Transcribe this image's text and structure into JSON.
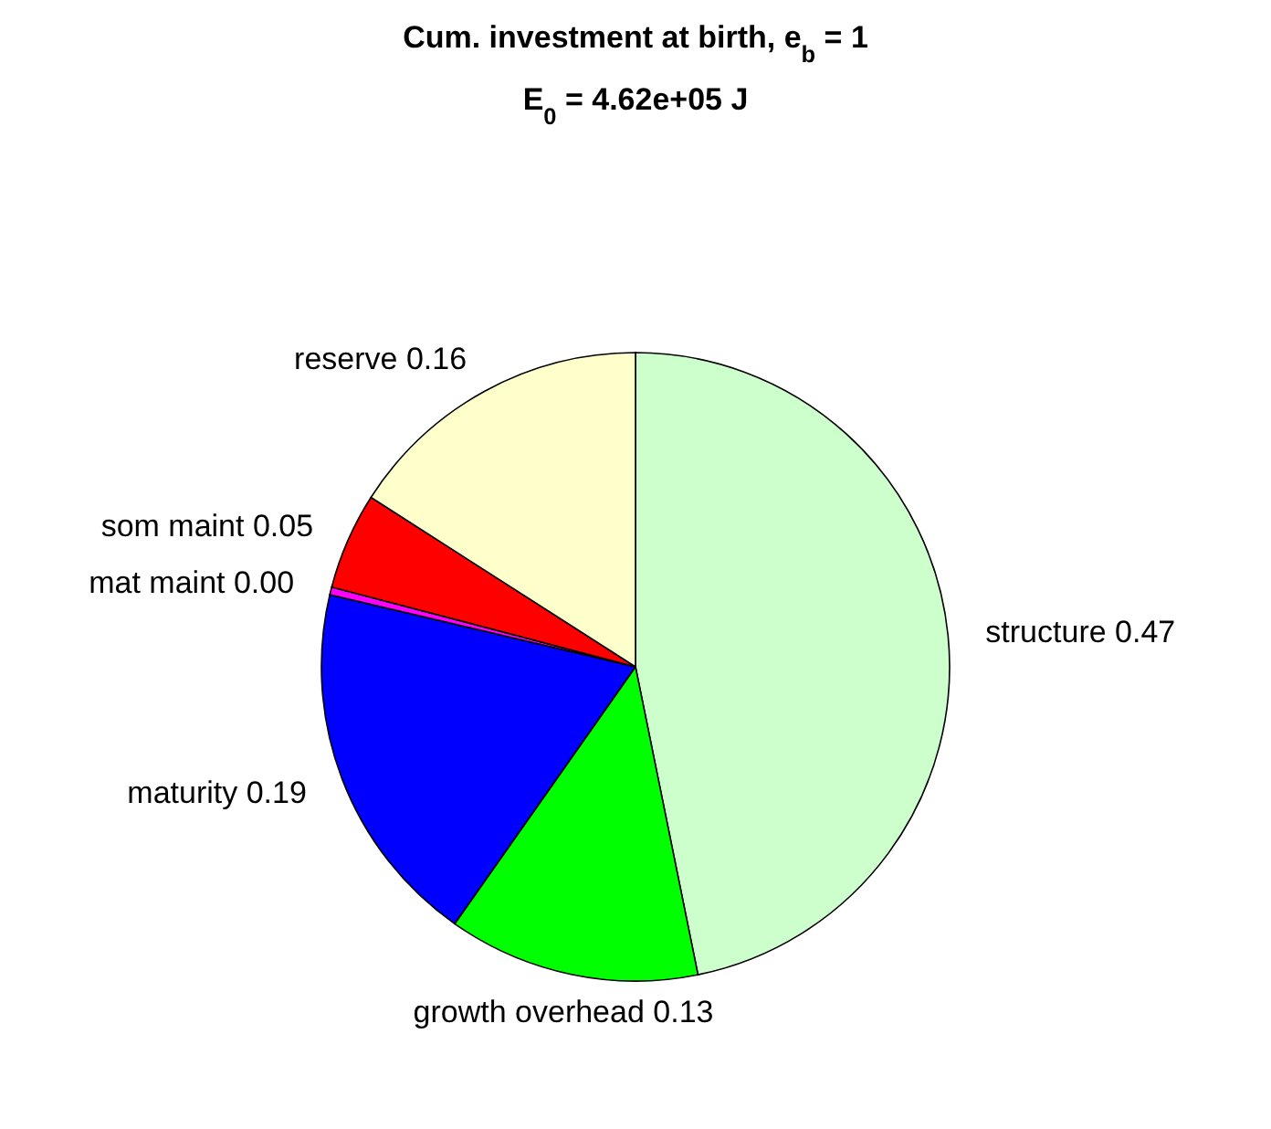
{
  "chart_data": {
    "type": "pie",
    "title": "Cum. investment at birth, e$_{b}$ = 1",
    "subtitle": "E$_{0}$ = 4.62e+05 J",
    "categories": [
      "structure",
      "growth overhead",
      "maturity",
      "mat maint",
      "som maint",
      "reserve"
    ],
    "values": [
      0.47,
      0.13,
      0.19,
      0.004,
      0.05,
      0.16
    ],
    "value_labels": [
      "0.47",
      "0.13",
      "0.19",
      "0.00",
      "0.05",
      "0.16"
    ],
    "colors": [
      "#ccffcc",
      "#00ff00",
      "#0000ff",
      "#ff00ff",
      "#ff0000",
      "#ffffcc"
    ]
  }
}
